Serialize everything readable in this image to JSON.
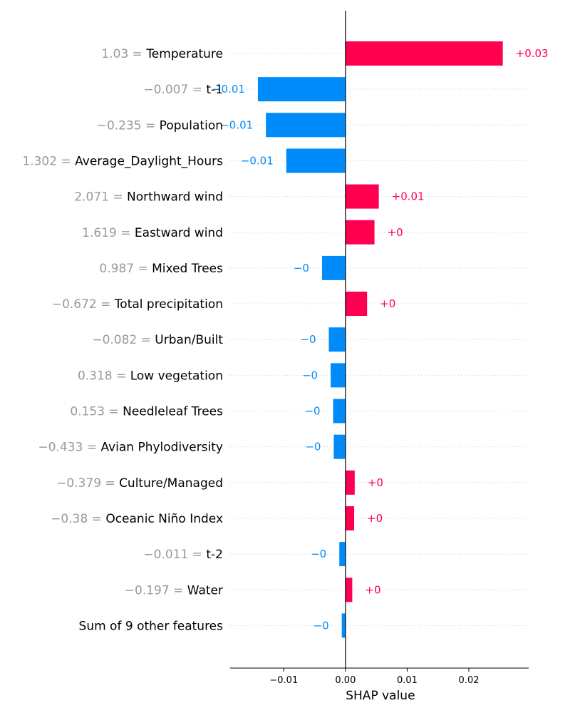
{
  "chart_data": {
    "type": "bar",
    "orientation": "horizontal",
    "subtype": "shap-waterfall",
    "xlabel": "SHAP value",
    "xlim": [
      -0.0187,
      0.0297
    ],
    "xticks": [
      -0.01,
      0.0,
      0.01,
      0.02
    ],
    "xtick_labels": [
      "−0.01",
      "0.00",
      "0.01",
      "0.02"
    ],
    "grid": false,
    "legend": "none",
    "colors": {
      "positive": "#ff0051",
      "negative": "#008bfb",
      "feature_value": "#999999",
      "feature_name": "#000000"
    },
    "features": [
      {
        "value": "1.03 =",
        "name": "Temperature",
        "shap": 0.0255,
        "label": "+0.03"
      },
      {
        "value": "−0.007 =",
        "name": "t-1",
        "shap": -0.0142,
        "label": "−0.01"
      },
      {
        "value": "−0.235 =",
        "name": "Population",
        "shap": -0.0129,
        "label": "−0.01"
      },
      {
        "value": "1.302 =",
        "name": "Average_Daylight_Hours",
        "shap": -0.0096,
        "label": "−0.01"
      },
      {
        "value": "2.071 =",
        "name": "Northward wind",
        "shap": 0.0054,
        "label": "+0.01"
      },
      {
        "value": "1.619 =",
        "name": "Eastward wind",
        "shap": 0.0047,
        "label": "+0"
      },
      {
        "value": "0.987 =",
        "name": "Mixed Trees",
        "shap": -0.0038,
        "label": "−0"
      },
      {
        "value": "−0.672 =",
        "name": "Total precipitation",
        "shap": 0.0035,
        "label": "+0"
      },
      {
        "value": "−0.082 =",
        "name": "Urban/Built",
        "shap": -0.0027,
        "label": "−0"
      },
      {
        "value": "0.318 =",
        "name": "Low vegetation",
        "shap": -0.0024,
        "label": "−0"
      },
      {
        "value": "0.153 =",
        "name": "Needleleaf Trees",
        "shap": -0.002,
        "label": "−0"
      },
      {
        "value": "−0.433 =",
        "name": "Avian Phylodiversity",
        "shap": -0.0019,
        "label": "−0"
      },
      {
        "value": "−0.379 =",
        "name": "Culture/Managed",
        "shap": 0.0015,
        "label": "+0"
      },
      {
        "value": "−0.38 =",
        "name": "Oceanic Niño Index",
        "shap": 0.0014,
        "label": "+0"
      },
      {
        "value": "−0.011 =",
        "name": "t-2",
        "shap": -0.001,
        "label": "−0"
      },
      {
        "value": "−0.197 =",
        "name": "Water",
        "shap": 0.0011,
        "label": "+0"
      },
      {
        "value": "",
        "name": "Sum of 9 other features",
        "shap": -0.0006,
        "label": "−0"
      }
    ]
  }
}
